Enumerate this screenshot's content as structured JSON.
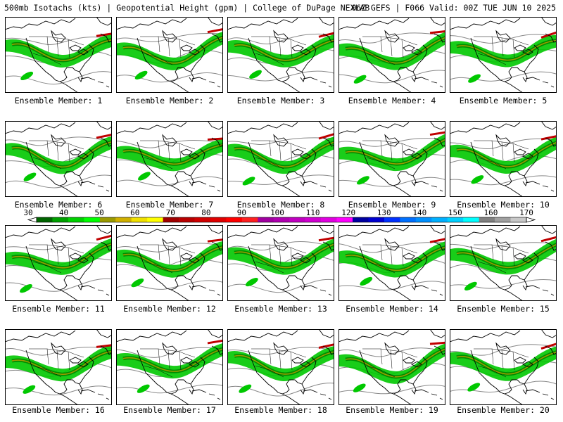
{
  "header": {
    "title": "500mb Isotachs (kts) | Geopotential Height (gpm) | College of DuPage NEXLAB",
    "run_info": "06Z GEFS | F066 Valid: 00Z TUE JUN 10 2025"
  },
  "members": [
    {
      "label": "Ensemble Member: 1"
    },
    {
      "label": "Ensemble Member: 2"
    },
    {
      "label": "Ensemble Member: 3"
    },
    {
      "label": "Ensemble Member: 4"
    },
    {
      "label": "Ensemble Member: 5"
    },
    {
      "label": "Ensemble Member: 6"
    },
    {
      "label": "Ensemble Member: 7"
    },
    {
      "label": "Ensemble Member: 8"
    },
    {
      "label": "Ensemble Member: 9"
    },
    {
      "label": "Ensemble Member: 10"
    },
    {
      "label": "Ensemble Member: 11"
    },
    {
      "label": "Ensemble Member: 12"
    },
    {
      "label": "Ensemble Member: 13"
    },
    {
      "label": "Ensemble Member: 14"
    },
    {
      "label": "Ensemble Member: 15"
    },
    {
      "label": "Ensemble Member: 16"
    },
    {
      "label": "Ensemble Member: 17"
    },
    {
      "label": "Ensemble Member: 18"
    },
    {
      "label": "Ensemble Member: 19"
    },
    {
      "label": "Ensemble Member: 20"
    }
  ],
  "colorbar": {
    "ticks": [
      "30",
      "40",
      "50",
      "60",
      "70",
      "80",
      "90",
      "100",
      "110",
      "120",
      "130",
      "140",
      "150",
      "160",
      "170"
    ],
    "colors": [
      "#006400",
      "#00a000",
      "#00d000",
      "#00ff00",
      "#9a9a00",
      "#d0b000",
      "#f0e000",
      "#ffff00",
      "#a00000",
      "#b80000",
      "#d00000",
      "#e00000",
      "#ff0000",
      "#ff2020",
      "#a000a0",
      "#b000b0",
      "#c000c0",
      "#d000d0",
      "#e000e0",
      "#ff00ff",
      "#0000a0",
      "#0000d0",
      "#0030ff",
      "#0070ff",
      "#0090ff",
      "#00b0ff",
      "#00d0ff",
      "#00ffff",
      "#808080",
      "#a0a0a0",
      "#c8c8c8"
    ]
  },
  "map_colors": {
    "jet_light": "#00c800",
    "jet_dark": "#008c00",
    "jet_core": "#9a9a00",
    "jet_max": "#c00000",
    "height_contour": "#888888",
    "coastline": "#000000"
  }
}
